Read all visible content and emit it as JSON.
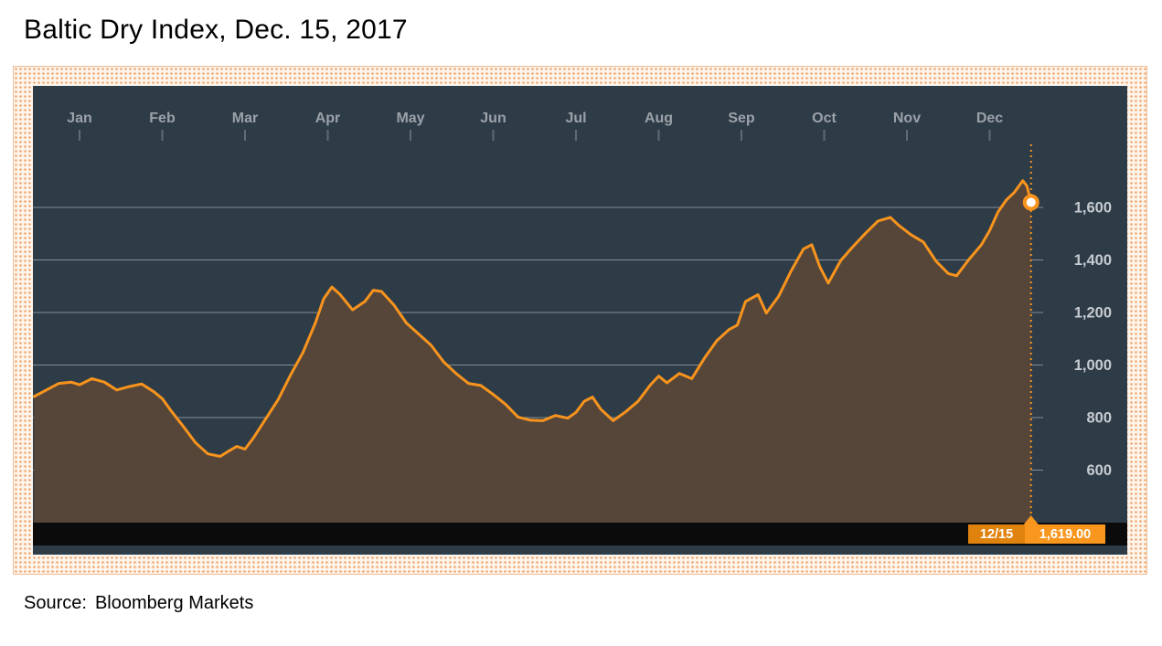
{
  "chart_data": {
    "type": "area",
    "title": "Baltic Dry Index, Dec. 15, 2017",
    "source_label": "Source:",
    "source_value": "Bloomberg Markets",
    "grid": true,
    "legend": "none",
    "x_axis": {
      "position": "top",
      "tick_labels": [
        "Jan",
        "Feb",
        "Mar",
        "Apr",
        "May",
        "Jun",
        "Jul",
        "Aug",
        "Sep",
        "Oct",
        "Nov",
        "Dec"
      ]
    },
    "y_axis": {
      "position": "right",
      "ticks": [
        600,
        800,
        1000,
        1200,
        1400,
        1600
      ],
      "tick_labels": [
        "600",
        "800",
        "1,000",
        "1,200",
        "1,400",
        "1,600"
      ]
    },
    "ylim": [
      430,
      1870
    ],
    "x_domain": [
      -0.55,
      12.1
    ],
    "last_point": {
      "x": 11.5,
      "value": 1619,
      "date_label": "12/15",
      "value_label": "1,619.00"
    },
    "series": [
      {
        "name": "Baltic Dry Index",
        "color": "#f8941d",
        "points": [
          [
            -0.55,
            880
          ],
          [
            -0.4,
            905
          ],
          [
            -0.25,
            930
          ],
          [
            -0.1,
            935
          ],
          [
            0.0,
            925
          ],
          [
            0.15,
            948
          ],
          [
            0.3,
            935
          ],
          [
            0.45,
            905
          ],
          [
            0.6,
            918
          ],
          [
            0.75,
            928
          ],
          [
            0.9,
            898
          ],
          [
            1.0,
            872
          ],
          [
            1.1,
            828
          ],
          [
            1.25,
            768
          ],
          [
            1.4,
            705
          ],
          [
            1.55,
            662
          ],
          [
            1.7,
            652
          ],
          [
            1.8,
            672
          ],
          [
            1.9,
            690
          ],
          [
            2.0,
            680
          ],
          [
            2.1,
            722
          ],
          [
            2.25,
            795
          ],
          [
            2.4,
            868
          ],
          [
            2.55,
            962
          ],
          [
            2.7,
            1048
          ],
          [
            2.85,
            1160
          ],
          [
            2.95,
            1252
          ],
          [
            3.05,
            1297
          ],
          [
            3.15,
            1268
          ],
          [
            3.3,
            1210
          ],
          [
            3.45,
            1242
          ],
          [
            3.55,
            1285
          ],
          [
            3.65,
            1280
          ],
          [
            3.8,
            1228
          ],
          [
            3.95,
            1160
          ],
          [
            4.1,
            1118
          ],
          [
            4.25,
            1075
          ],
          [
            4.4,
            1012
          ],
          [
            4.55,
            968
          ],
          [
            4.7,
            930
          ],
          [
            4.85,
            922
          ],
          [
            5.0,
            888
          ],
          [
            5.15,
            850
          ],
          [
            5.3,
            802
          ],
          [
            5.45,
            790
          ],
          [
            5.6,
            788
          ],
          [
            5.75,
            808
          ],
          [
            5.9,
            798
          ],
          [
            6.0,
            820
          ],
          [
            6.1,
            862
          ],
          [
            6.2,
            878
          ],
          [
            6.3,
            832
          ],
          [
            6.45,
            788
          ],
          [
            6.6,
            822
          ],
          [
            6.75,
            862
          ],
          [
            6.9,
            925
          ],
          [
            7.0,
            958
          ],
          [
            7.1,
            932
          ],
          [
            7.25,
            968
          ],
          [
            7.4,
            948
          ],
          [
            7.55,
            1025
          ],
          [
            7.7,
            1092
          ],
          [
            7.85,
            1135
          ],
          [
            7.95,
            1152
          ],
          [
            8.05,
            1242
          ],
          [
            8.2,
            1268
          ],
          [
            8.3,
            1198
          ],
          [
            8.45,
            1262
          ],
          [
            8.6,
            1358
          ],
          [
            8.75,
            1442
          ],
          [
            8.85,
            1458
          ],
          [
            8.95,
            1372
          ],
          [
            9.05,
            1312
          ],
          [
            9.2,
            1398
          ],
          [
            9.35,
            1452
          ],
          [
            9.5,
            1502
          ],
          [
            9.65,
            1548
          ],
          [
            9.8,
            1562
          ],
          [
            9.9,
            1532
          ],
          [
            10.05,
            1496
          ],
          [
            10.2,
            1468
          ],
          [
            10.35,
            1396
          ],
          [
            10.5,
            1348
          ],
          [
            10.6,
            1340
          ],
          [
            10.75,
            1402
          ],
          [
            10.9,
            1458
          ],
          [
            11.0,
            1512
          ],
          [
            11.1,
            1582
          ],
          [
            11.2,
            1628
          ],
          [
            11.3,
            1658
          ],
          [
            11.4,
            1702
          ],
          [
            11.45,
            1682
          ],
          [
            11.5,
            1619
          ]
        ]
      }
    ],
    "colors": {
      "panel_bg": "#2e3c48",
      "grid": "#848b93",
      "area": "#564639",
      "line": "#f8941d",
      "tick": "#626a72",
      "month_text": "#9ba1a8",
      "y_text": "#c6cbd0",
      "strip": "#0b0b0b",
      "tooltip_bg": "#f8961d",
      "tooltip_date_bg": "#e0820e",
      "crosshair": "#f8941d"
    }
  }
}
